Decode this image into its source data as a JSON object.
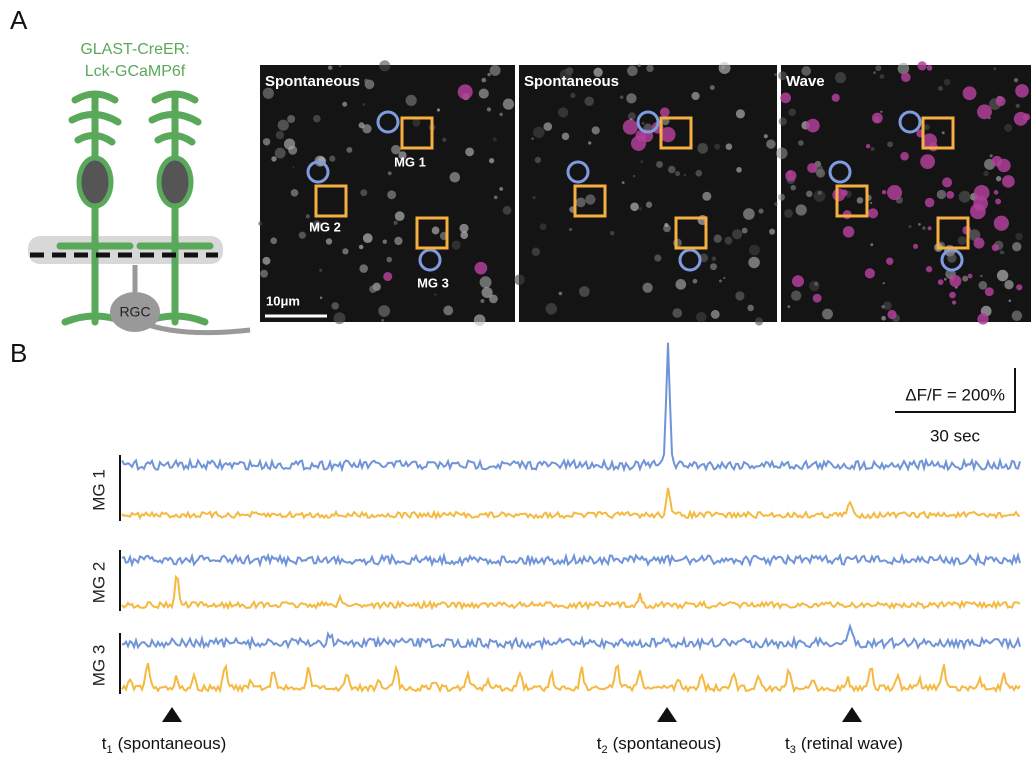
{
  "panel_labels": [
    "A",
    "B"
  ],
  "schematic": {
    "title_lines": [
      "GLAST-CreER:",
      "Lck-GCaMP6f"
    ],
    "cell_label": "RGC"
  },
  "images": [
    {
      "label": "Spontaneous",
      "cells": [
        "MG 1",
        "MG 2",
        "MG 3"
      ],
      "scale_bar": "10μm"
    },
    {
      "label": "Spontaneous"
    },
    {
      "label": "Wave"
    }
  ],
  "traces": {
    "cells": [
      "MG 1",
      "MG 2",
      "MG 3"
    ],
    "scale_y": "ΔF/F = 200%",
    "scale_x": "30 sec"
  },
  "events": [
    {
      "t": "t",
      "sub": "1",
      "label": "(spontaneous)"
    },
    {
      "t": "t",
      "sub": "2",
      "label": "(spontaneous)"
    },
    {
      "t": "t",
      "sub": "3",
      "label": "(retinal wave)"
    }
  ]
}
